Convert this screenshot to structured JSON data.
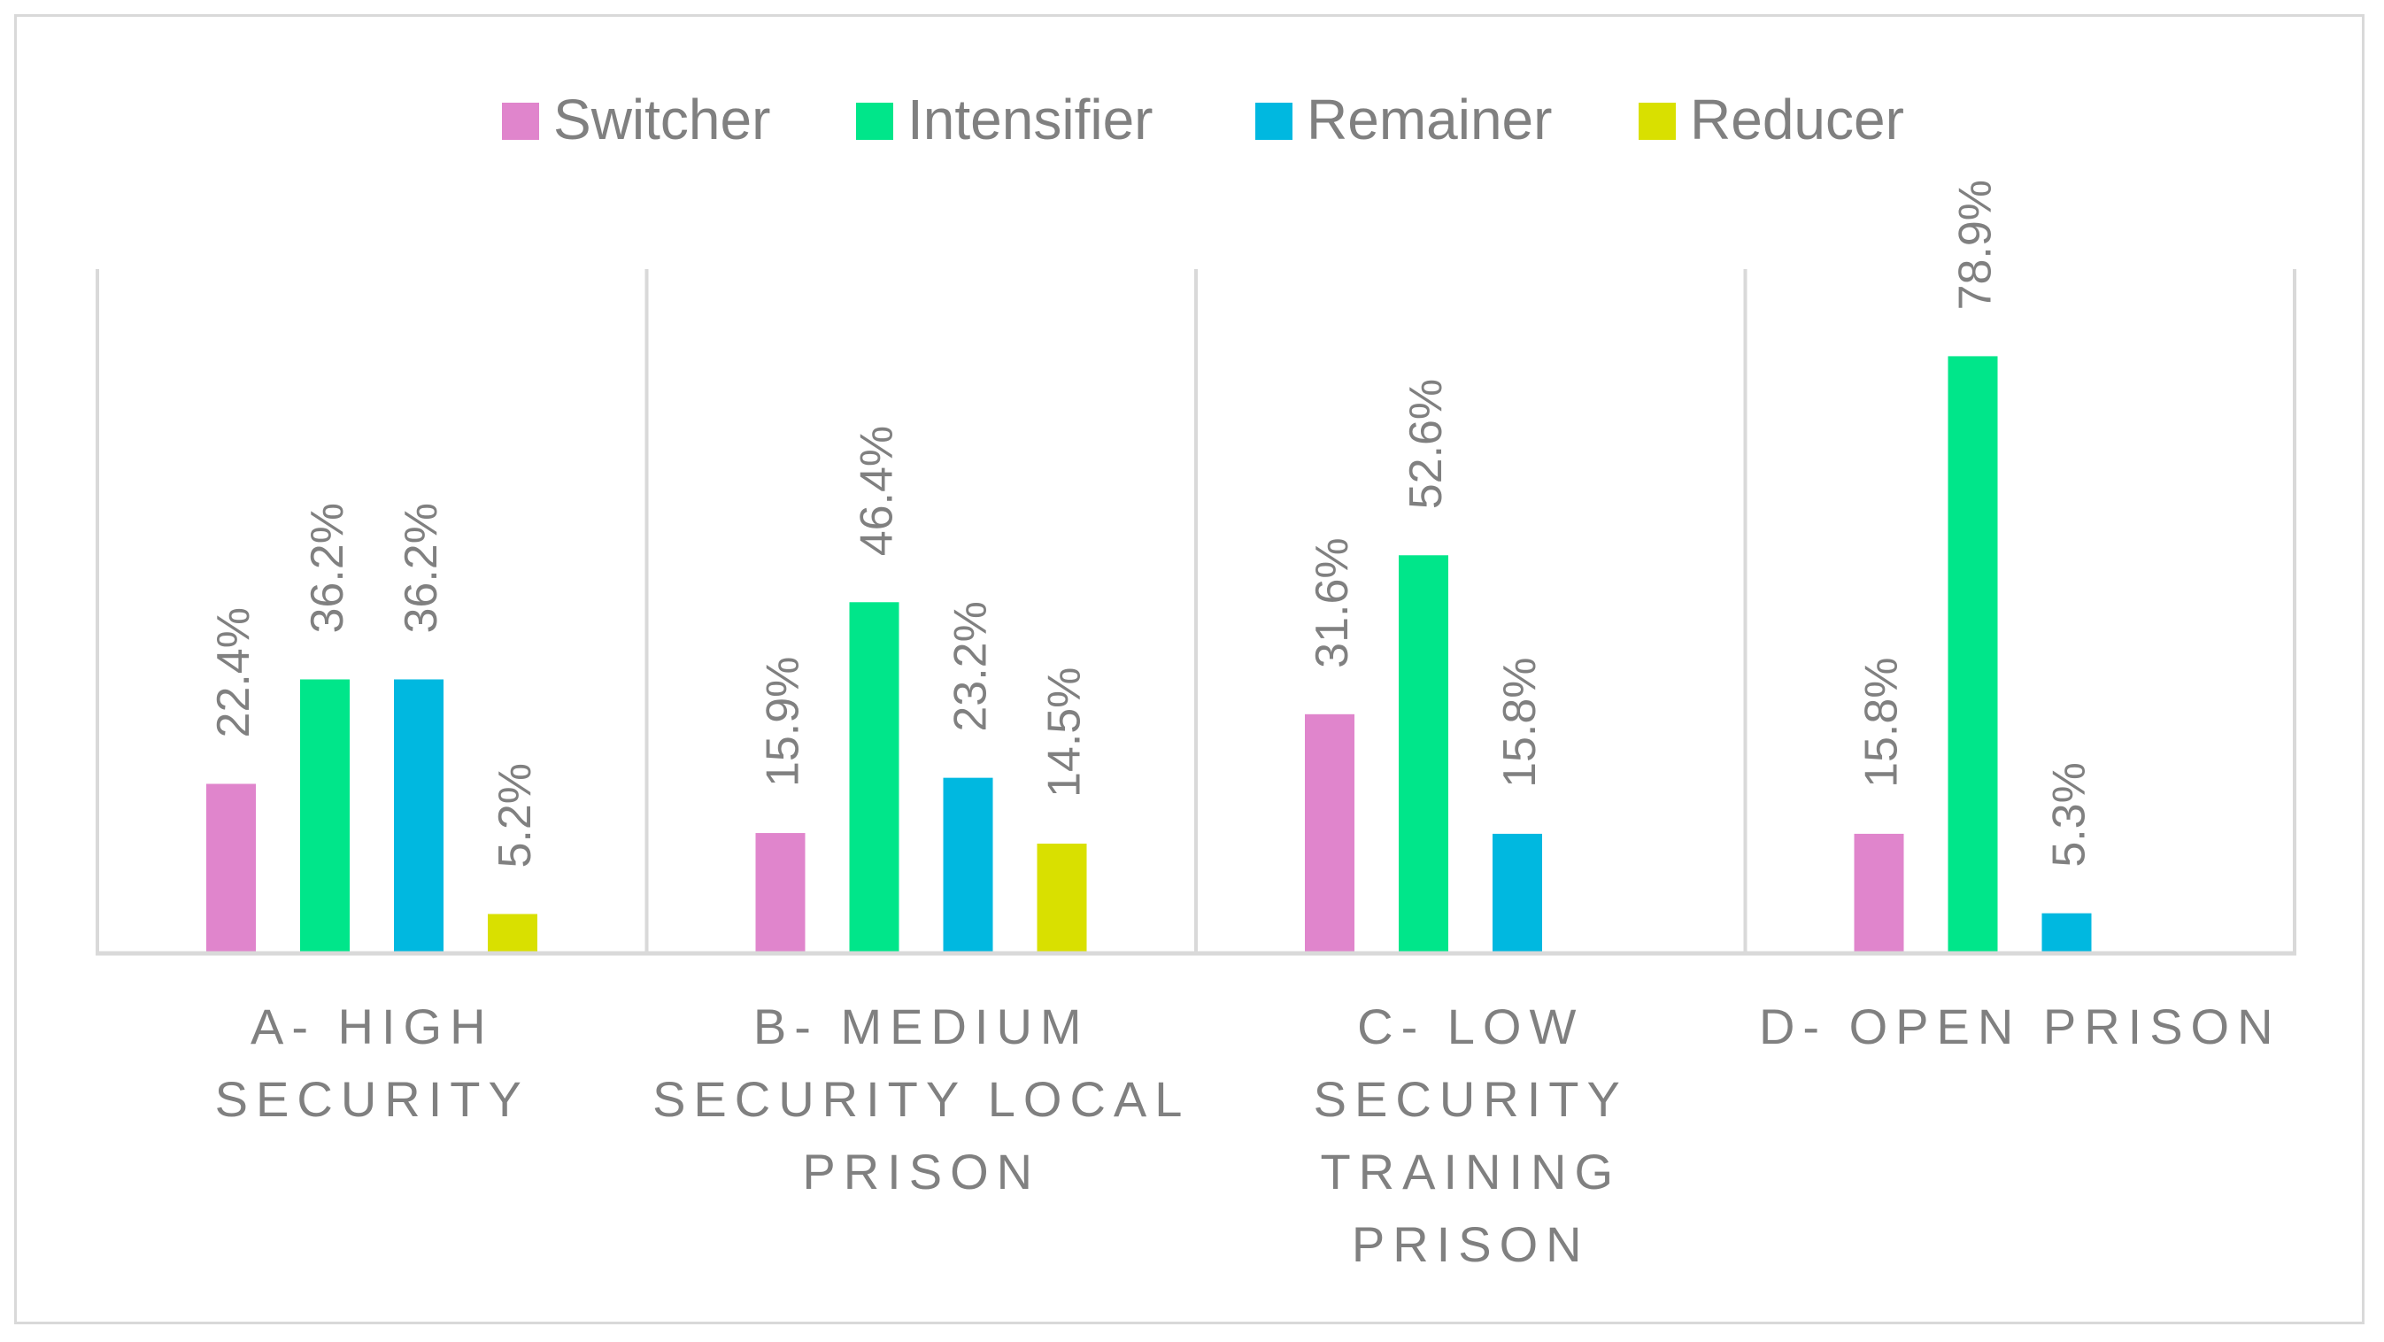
{
  "chart_data": {
    "type": "bar",
    "title": "",
    "xlabel": "",
    "ylabel": "",
    "ylim": [
      0,
      100
    ],
    "grid": false,
    "legend_position": "top-center",
    "categories": [
      [
        "A- HIGH",
        "SECURITY"
      ],
      [
        "B- MEDIUM",
        "SECURITY LOCAL",
        "PRISON"
      ],
      [
        "C- LOW",
        "SECURITY",
        "TRAINING",
        "PRISON"
      ],
      [
        "D- OPEN PRISON"
      ]
    ],
    "series": [
      {
        "name": "Switcher",
        "color": "#e085cc",
        "values": [
          22.4,
          15.9,
          31.6,
          15.8
        ],
        "labels": [
          "22.4%",
          "15.9%",
          "31.6%",
          "15.8%"
        ]
      },
      {
        "name": "Intensifier",
        "color": "#00e68a",
        "values": [
          36.2,
          46.4,
          52.6,
          78.9
        ],
        "labels": [
          "36.2%",
          "46.4%",
          "52.6%",
          "78.9%"
        ]
      },
      {
        "name": "Remainer",
        "color": "#00b8e0",
        "values": [
          36.2,
          23.2,
          15.8,
          5.3
        ],
        "labels": [
          "36.2%",
          "23.2%",
          "15.8%",
          "5.3%"
        ]
      },
      {
        "name": "Reducer",
        "color": "#d9e000",
        "values": [
          5.2,
          14.5,
          null,
          null
        ],
        "labels": [
          "5.2%",
          "14.5%",
          null,
          null
        ]
      }
    ]
  }
}
